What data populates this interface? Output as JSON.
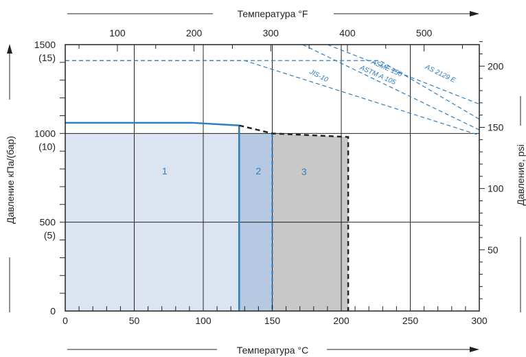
{
  "chart_data": {
    "type": "area",
    "x_axis": {
      "label": "Температура °C",
      "range": [
        0,
        300
      ],
      "ticks": [
        0,
        50,
        100,
        150,
        200,
        250,
        300
      ],
      "tick_labels": [
        "0",
        "50",
        "100",
        "150",
        "200",
        "250",
        "300"
      ]
    },
    "x2_axis": {
      "label": "Температура °F",
      "ticks": [
        100,
        200,
        300,
        400,
        500
      ],
      "tick_labels": [
        "100",
        "200",
        "300",
        "400",
        "500"
      ]
    },
    "y_axis": {
      "label": "Давление кПа/(бар)",
      "range": [
        0,
        1500
      ],
      "ticks": [
        0,
        500,
        1000,
        1500
      ],
      "tick_labels": [
        {
          "main": "0",
          "sub": ""
        },
        {
          "main": "500",
          "sub": "(5)"
        },
        {
          "main": "1000",
          "sub": "(10)"
        },
        {
          "main": "1500",
          "sub": "(15)"
        }
      ]
    },
    "y2_axis": {
      "label": "Давление, psi",
      "ticks": [
        50,
        100,
        150,
        200
      ],
      "tick_labels": [
        "50",
        "100",
        "150",
        "200"
      ]
    },
    "grid": true,
    "regions": [
      {
        "label": "1",
        "x": [
          0,
          126
        ],
        "top": [
          [
            0,
            1000
          ],
          [
            126,
            1000
          ]
        ],
        "color": "#dbe4f0"
      },
      {
        "label": "2",
        "x": [
          126,
          150
        ],
        "top": [
          [
            126,
            1000
          ],
          [
            150,
            1000
          ]
        ],
        "color": "#b5c9e3"
      },
      {
        "label": "3",
        "x": [
          150,
          205
        ],
        "top": [
          [
            150,
            1000
          ],
          [
            205,
            980
          ]
        ],
        "color": "#c8c8c8"
      }
    ],
    "series": [
      {
        "style": "solid",
        "color": "#2f7dc1",
        "points": [
          [
            0,
            1060
          ],
          [
            92,
            1060
          ],
          [
            126,
            1045
          ]
        ]
      },
      {
        "style": "dashed",
        "color": "#222222",
        "points": [
          [
            126,
            1045
          ],
          [
            150,
            1000
          ],
          [
            205,
            980
          ],
          [
            205,
            0
          ]
        ]
      }
    ],
    "reference_lines": [
      {
        "label": "JIS-10",
        "points": [
          [
            0,
            1410
          ],
          [
            130,
            1410
          ],
          [
            300,
            990
          ]
        ]
      },
      {
        "label": "ASME 150",
        "points": [
          [
            0,
            1410
          ],
          [
            228,
            1410
          ],
          [
            300,
            1080
          ]
        ]
      },
      {
        "label": "ASTM A 105",
        "points": [
          [
            172,
            1500
          ],
          [
            300,
            1020
          ]
        ]
      },
      {
        "label": "AS 2129 E",
        "points": [
          [
            190,
            1500
          ],
          [
            300,
            1165
          ]
        ]
      }
    ],
    "region_labels": [
      "1",
      "2",
      "3"
    ]
  }
}
